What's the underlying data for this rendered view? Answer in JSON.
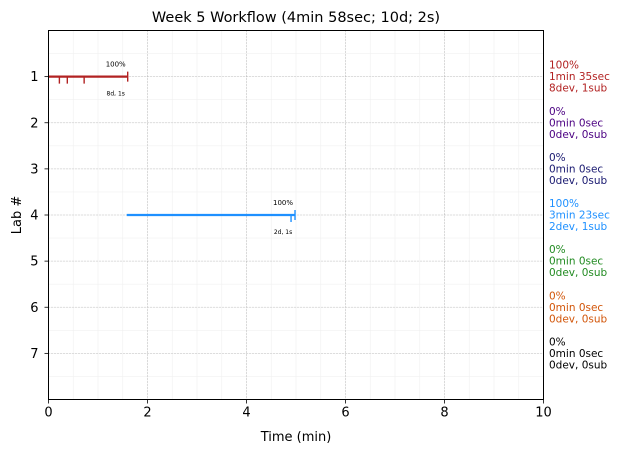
{
  "chart_data": {
    "type": "timeline",
    "title": "Week 5 Workflow (4min 58sec; 10d; 2s)",
    "xlabel": "Time (min)",
    "ylabel": "Lab #",
    "xlim": [
      0,
      10
    ],
    "ylim": [
      0,
      8
    ],
    "x_ticks": [
      "0",
      "2",
      "4",
      "6",
      "8",
      "10"
    ],
    "x_tick_values": [
      0,
      2,
      4,
      6,
      8,
      10
    ],
    "y_ticks": [
      "1",
      "2",
      "3",
      "4",
      "5",
      "6",
      "7"
    ],
    "y_tick_values": [
      1,
      2,
      3,
      4,
      5,
      6,
      7
    ],
    "grid": true,
    "labs": [
      {
        "lab": 1,
        "color": "#b22222",
        "start": 0.0,
        "end": 1.6,
        "bar_label": "100%",
        "sub_label": "8d, 1s",
        "dev_ticks": [
          0.22,
          0.38,
          0.72
        ],
        "sub_ticks": [
          1.6
        ],
        "side": [
          "100%",
          "1min 35sec",
          "8dev, 1sub"
        ]
      },
      {
        "lab": 2,
        "color": "#4b0082",
        "start": null,
        "end": null,
        "bar_label": "",
        "sub_label": "",
        "dev_ticks": [],
        "sub_ticks": [],
        "side": [
          "0%",
          "0min 0sec",
          "0dev, 0sub"
        ]
      },
      {
        "lab": 3,
        "color": "#191970",
        "start": null,
        "end": null,
        "bar_label": "",
        "sub_label": "",
        "dev_ticks": [],
        "sub_ticks": [],
        "side": [
          "0%",
          "0min 0sec",
          "0dev, 0sub"
        ]
      },
      {
        "lab": 4,
        "color": "#1e90ff",
        "start": 1.58,
        "end": 4.98,
        "bar_label": "100%",
        "sub_label": "2d, 1s",
        "dev_ticks": [
          4.9
        ],
        "sub_ticks": [
          4.98
        ],
        "side": [
          "100%",
          "3min 23sec",
          "2dev, 1sub"
        ]
      },
      {
        "lab": 5,
        "color": "#228b22",
        "start": null,
        "end": null,
        "bar_label": "",
        "sub_label": "",
        "dev_ticks": [],
        "sub_ticks": [],
        "side": [
          "0%",
          "0min 0sec",
          "0dev, 0sub"
        ]
      },
      {
        "lab": 6,
        "color": "#d2560a",
        "start": null,
        "end": null,
        "bar_label": "",
        "sub_label": "",
        "dev_ticks": [],
        "sub_ticks": [],
        "side": [
          "0%",
          "0min 0sec",
          "0dev, 0sub"
        ]
      },
      {
        "lab": 7,
        "color": "#000000",
        "start": null,
        "end": null,
        "bar_label": "",
        "sub_label": "",
        "dev_ticks": [],
        "sub_ticks": [],
        "side": [
          "0%",
          "0min 0sec",
          "0dev, 0sub"
        ]
      }
    ]
  }
}
